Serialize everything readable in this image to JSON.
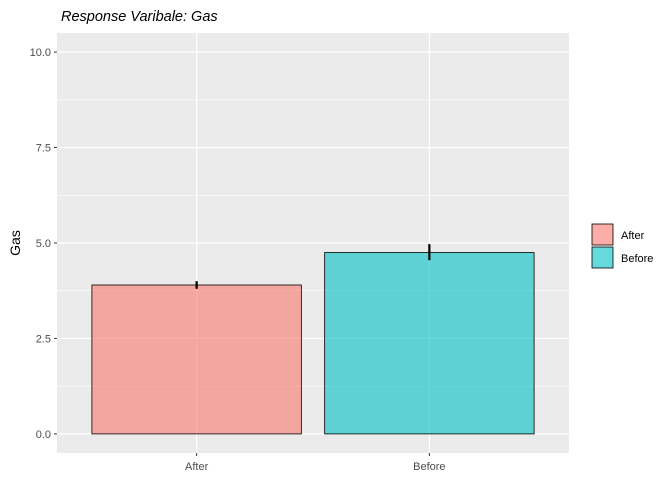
{
  "chart_data": {
    "type": "bar",
    "title": "Response Varibale: Gas",
    "xlabel": "",
    "ylabel": "Gas",
    "categories": [
      "After",
      "Before"
    ],
    "values": [
      3.9,
      4.75
    ],
    "error_bars": [
      {
        "low": 3.8,
        "high": 4.0
      },
      {
        "low": 4.55,
        "high": 4.97
      }
    ],
    "colors": [
      "#F8766D",
      "#00BFC4"
    ],
    "ylim": [
      -0.5,
      10.5
    ],
    "yticks": [
      0.0,
      2.5,
      5.0,
      7.5,
      10.0
    ],
    "ytick_labels": [
      "0.0",
      "2.5",
      "5.0",
      "7.5",
      "10.0"
    ],
    "grid": true,
    "legend": {
      "position": "right",
      "entries": [
        "After",
        "Before"
      ]
    }
  }
}
